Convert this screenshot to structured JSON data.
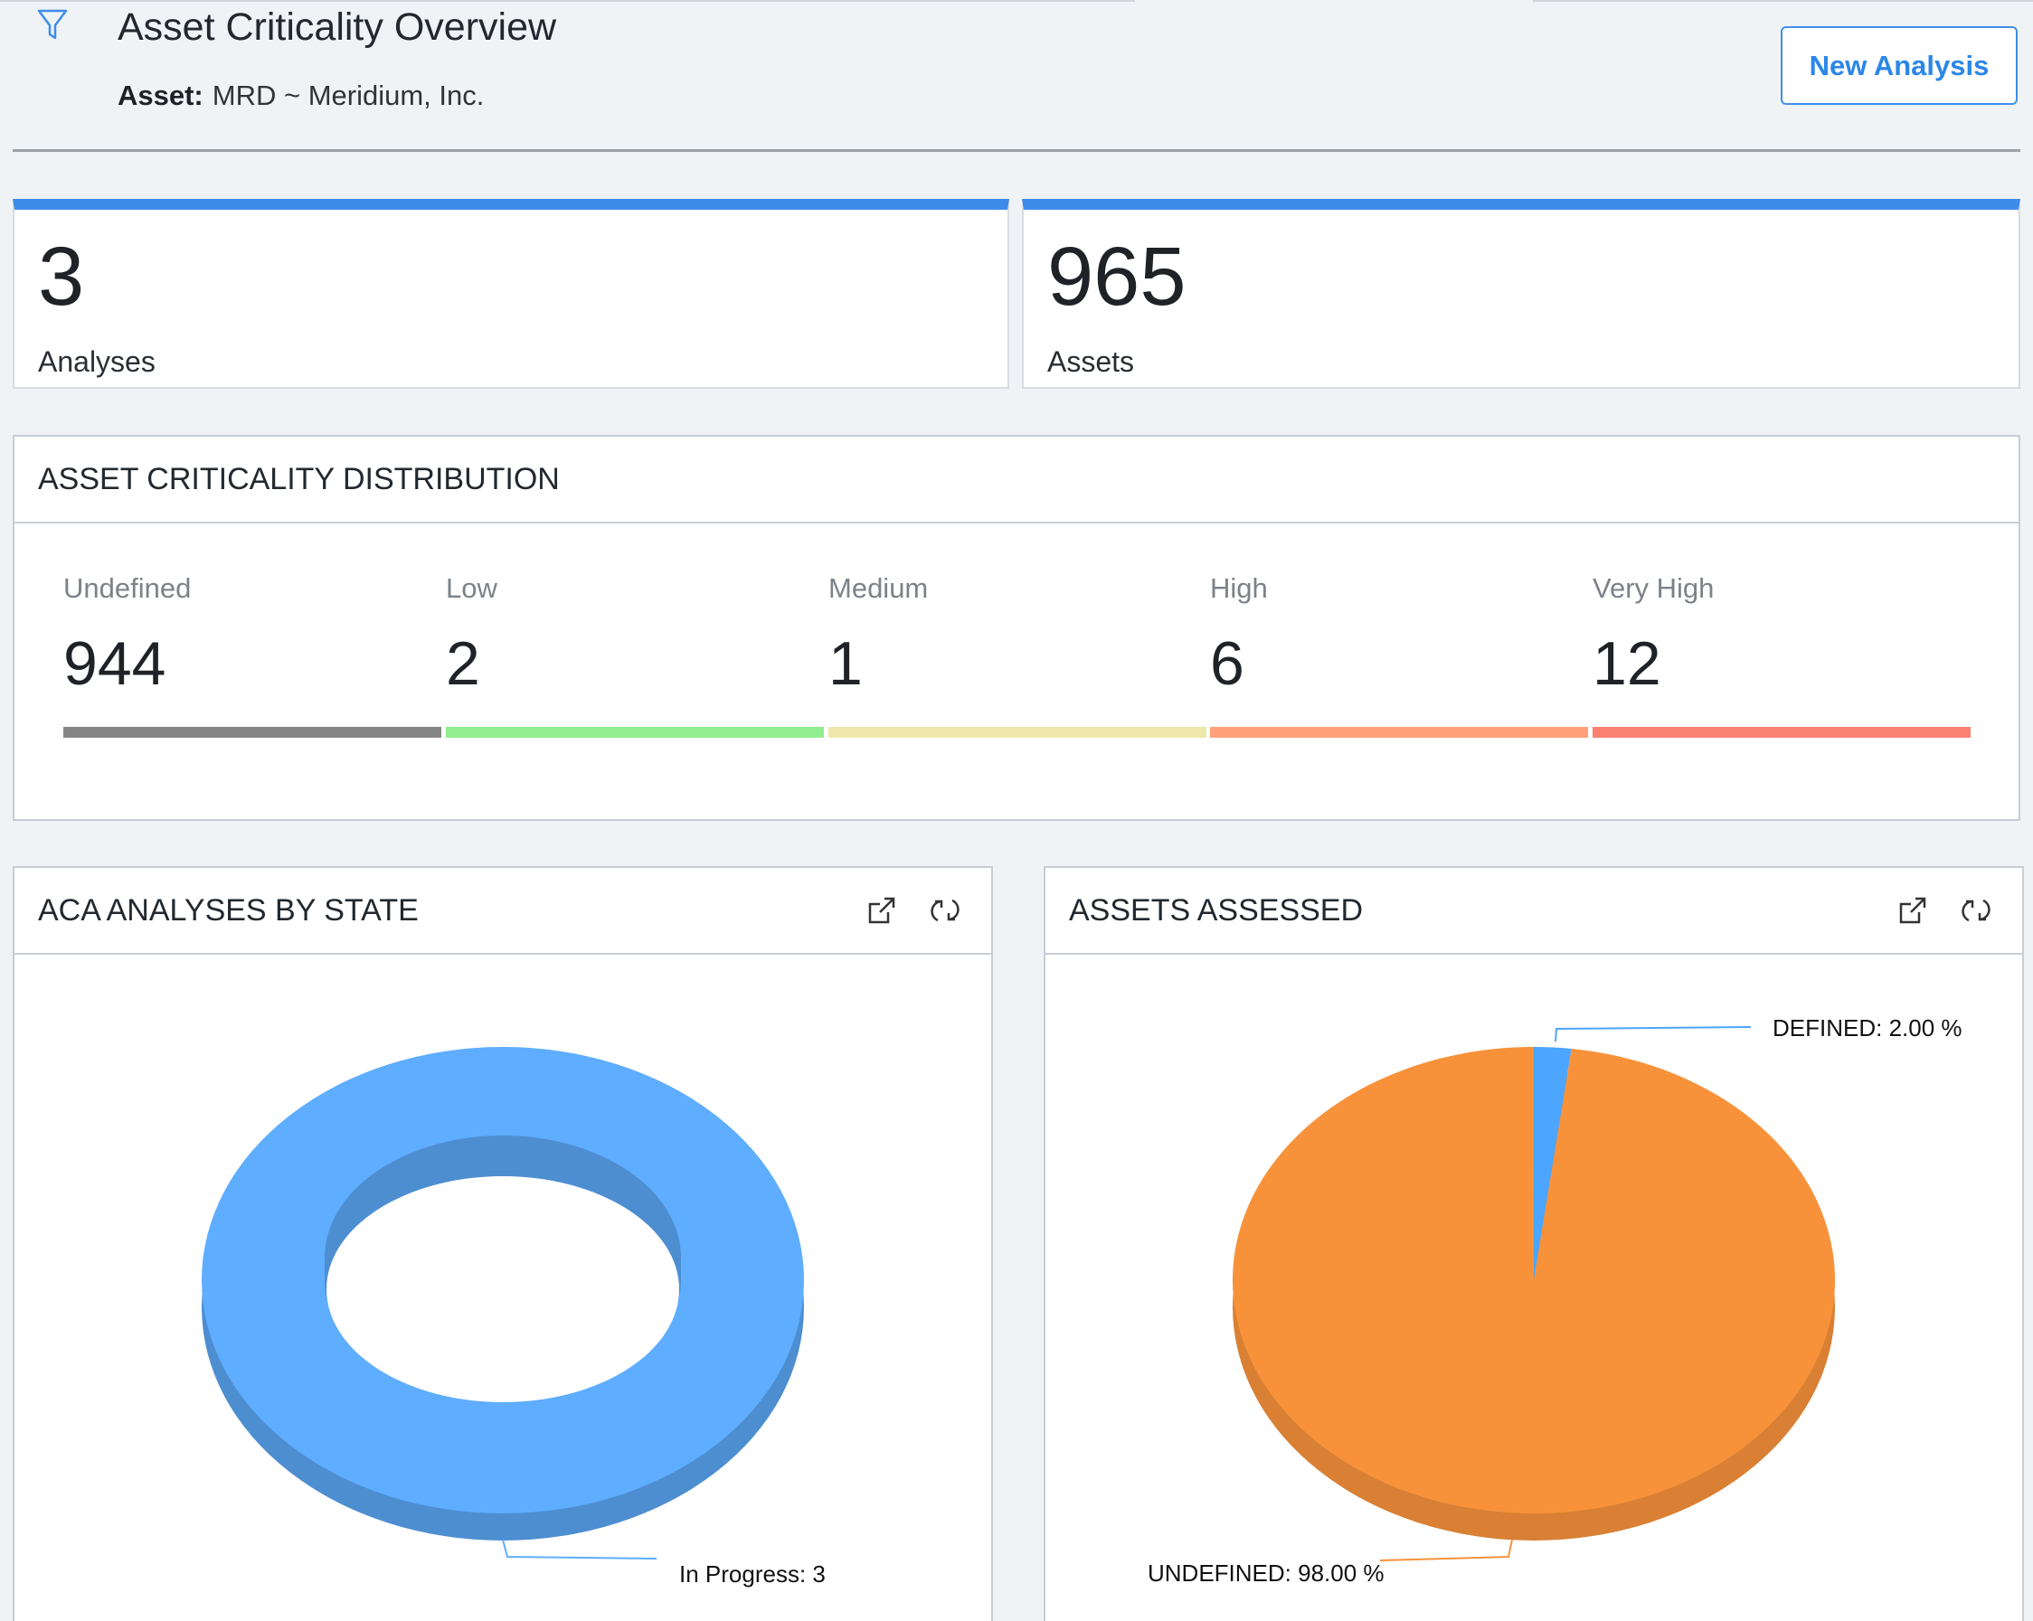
{
  "header": {
    "title": "Asset Criticality Overview",
    "asset_label": "Asset:",
    "asset_value": "MRD ~ Meridium, Inc.",
    "new_button_label": "New Analysis",
    "filter_icon": "filter-icon"
  },
  "kpis": [
    {
      "value": "3",
      "caption": "Analyses"
    },
    {
      "value": "965",
      "caption": "Assets"
    }
  ],
  "distribution": {
    "title": "ASSET CRITICALITY DISTRIBUTION",
    "items": [
      {
        "label": "Undefined",
        "value": "944",
        "color": "#858585"
      },
      {
        "label": "Low",
        "value": "2",
        "color": "#90ee90"
      },
      {
        "label": "Medium",
        "value": "1",
        "color": "#eee8aa"
      },
      {
        "label": "High",
        "value": "6",
        "color": "#ffa07a"
      },
      {
        "label": "Very High",
        "value": "12",
        "color": "#fa8072"
      }
    ]
  },
  "panels": {
    "analyses_by_state": {
      "title": "ACA ANALYSES BY STATE",
      "icons": [
        "external-link-icon",
        "refresh-icon"
      ]
    },
    "assets_assessed": {
      "title": "ASSETS ASSESSED",
      "icons": [
        "external-link-icon",
        "refresh-icon"
      ]
    }
  },
  "chart_data": [
    {
      "type": "pie",
      "style": "3d-donut",
      "slices": [
        {
          "label": "In Progress",
          "value": 3,
          "color": "#5eadff"
        }
      ],
      "data_labels": [
        "In Progress: 3"
      ]
    },
    {
      "type": "pie",
      "style": "3d-pie",
      "slices": [
        {
          "label": "DEFINED",
          "value": 2.0,
          "color": "#4ca6ff"
        },
        {
          "label": "UNDEFINED",
          "value": 98.0,
          "color": "#f7923b"
        }
      ],
      "data_labels": [
        "DEFINED: 2.00 %",
        "UNDEFINED: 98.00 %"
      ]
    }
  ]
}
